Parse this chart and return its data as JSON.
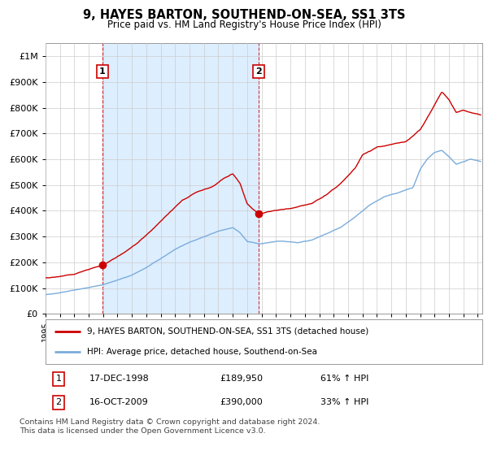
{
  "title": "9, HAYES BARTON, SOUTHEND-ON-SEA, SS1 3TS",
  "subtitle": "Price paid vs. HM Land Registry's House Price Index (HPI)",
  "ylim": [
    0,
    1050000
  ],
  "yticks": [
    0,
    100000,
    200000,
    300000,
    400000,
    500000,
    600000,
    700000,
    800000,
    900000,
    1000000
  ],
  "ytick_labels": [
    "£0",
    "£100K",
    "£200K",
    "£300K",
    "£400K",
    "£500K",
    "£600K",
    "£700K",
    "£800K",
    "£900K",
    "£1M"
  ],
  "legend_entry1": "9, HAYES BARTON, SOUTHEND-ON-SEA, SS1 3TS (detached house)",
  "legend_entry2": "HPI: Average price, detached house, Southend-on-Sea",
  "table_row1": [
    "1",
    "17-DEC-1998",
    "£189,950",
    "61% ↑ HPI"
  ],
  "table_row2": [
    "2",
    "16-OCT-2009",
    "£390,000",
    "33% ↑ HPI"
  ],
  "footnote": "Contains HM Land Registry data © Crown copyright and database right 2024.\nThis data is licensed under the Open Government Licence v3.0.",
  "red_color": "#cc0000",
  "blue_color": "#7aacdc",
  "shade_color": "#ddeeff",
  "grid_color": "#cccccc",
  "bg_color": "#ffffff",
  "sale1_year": 1998.96,
  "sale1_price": 189950,
  "sale2_year": 2009.79,
  "sale2_price": 390000,
  "xlim_start": 1995.0,
  "xlim_end": 2025.3
}
